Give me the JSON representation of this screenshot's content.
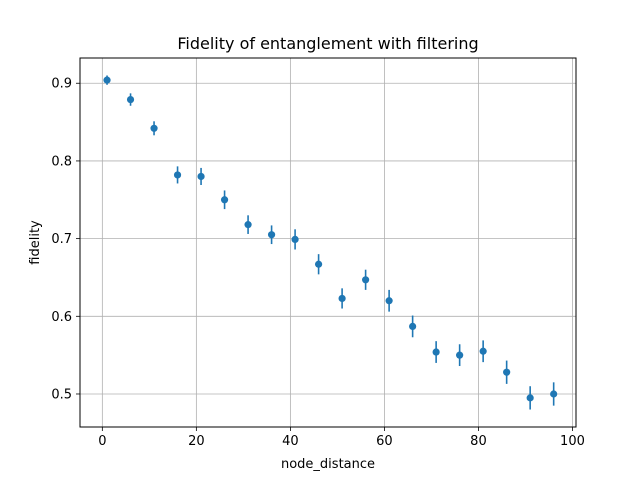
{
  "chart_data": {
    "type": "scatter",
    "title": "Fidelity of entanglement with filtering",
    "xlabel": "node_distance",
    "ylabel": "fidelity",
    "xlim": [
      -4.75,
      100.75
    ],
    "ylim": [
      0.4575,
      0.9325
    ],
    "xticks": [
      0,
      20,
      40,
      60,
      80,
      100
    ],
    "yticks": [
      0.5,
      0.6,
      0.7,
      0.8,
      0.9
    ],
    "grid": true,
    "color": "#1f77b4",
    "series": [
      {
        "x": [
          1,
          6,
          11,
          16,
          21,
          26,
          31,
          36,
          41,
          46,
          51,
          56,
          61,
          66,
          71,
          76,
          81,
          86,
          91,
          96
        ],
        "y": [
          0.904,
          0.879,
          0.842,
          0.782,
          0.78,
          0.75,
          0.718,
          0.705,
          0.699,
          0.667,
          0.623,
          0.647,
          0.62,
          0.587,
          0.554,
          0.55,
          0.555,
          0.528,
          0.495,
          0.5
        ],
        "yerr": [
          0.006,
          0.008,
          0.009,
          0.011,
          0.011,
          0.012,
          0.012,
          0.012,
          0.013,
          0.013,
          0.013,
          0.013,
          0.014,
          0.014,
          0.014,
          0.014,
          0.014,
          0.015,
          0.015,
          0.015
        ]
      }
    ]
  }
}
